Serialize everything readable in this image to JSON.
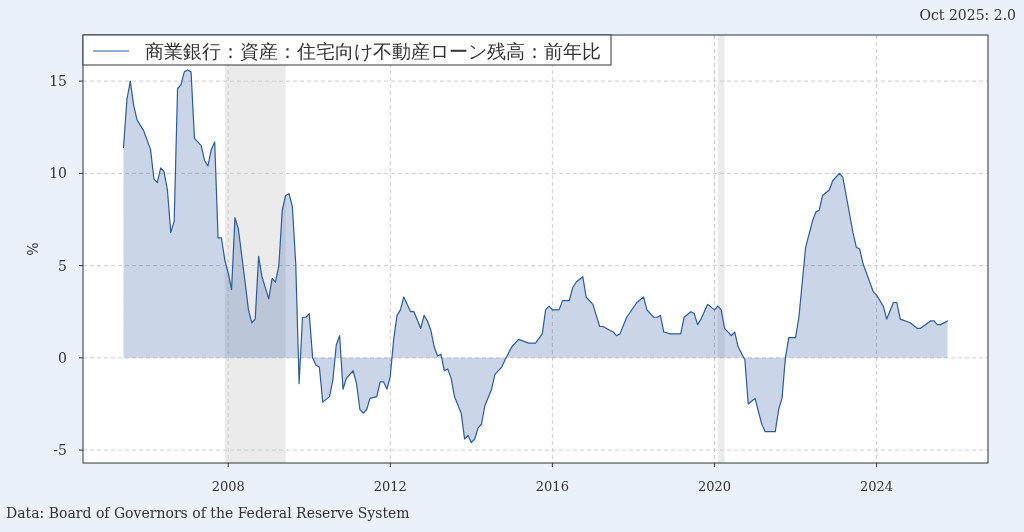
{
  "chart_data": {
    "type": "area",
    "ylabel": "%",
    "annotations": [
      "Oct 2025: 2.0",
      "Data: Board of Governors of the Federal Reserve System"
    ],
    "xlim": [
      "2004-06",
      "2026-10"
    ],
    "xticks": [
      "2008",
      "2012",
      "2016",
      "2020",
      "2024"
    ],
    "ylim": [
      -5.7,
      17.5
    ],
    "yticks": [
      -5,
      0,
      5,
      10,
      15
    ],
    "grid": true,
    "legend": "top left",
    "bands": [
      {
        "axis": "x",
        "from": "2007-12",
        "to": "2009-06",
        "color": "#ebebeb"
      },
      {
        "axis": "x",
        "from": "2020-02",
        "to": "2020-04",
        "color": "#ebebeb"
      }
    ],
    "x": [
      "2005-06",
      "2005-07",
      "2005-08",
      "2005-09",
      "2005-10",
      "2005-12",
      "2006-02",
      "2006-03",
      "2006-04",
      "2006-05",
      "2006-06",
      "2006-07",
      "2006-08",
      "2006-09",
      "2006-10",
      "2006-11",
      "2006-12",
      "2007-01",
      "2007-02",
      "2007-03",
      "2007-05",
      "2007-06",
      "2007-07",
      "2007-08",
      "2007-09",
      "2007-10",
      "2007-11",
      "2007-12",
      "2008-01",
      "2008-02",
      "2008-03",
      "2008-04",
      "2008-06",
      "2008-07",
      "2008-08",
      "2008-09",
      "2008-10",
      "2008-11",
      "2009-01",
      "2009-02",
      "2009-03",
      "2009-04",
      "2009-05",
      "2009-06",
      "2009-07",
      "2009-08",
      "2009-09",
      "2009-10",
      "2009-11",
      "2009-12",
      "2010-01",
      "2010-02",
      "2010-03",
      "2010-04",
      "2010-05",
      "2010-07",
      "2010-08",
      "2010-09",
      "2010-10",
      "2010-11",
      "2010-12",
      "2011-02",
      "2011-03",
      "2011-04",
      "2011-05",
      "2011-06",
      "2011-07",
      "2011-09",
      "2011-10",
      "2011-11",
      "2011-12",
      "2012-01",
      "2012-02",
      "2012-03",
      "2012-04",
      "2012-05",
      "2012-06",
      "2012-07",
      "2012-08",
      "2012-10",
      "2012-11",
      "2012-12",
      "2013-01",
      "2013-02",
      "2013-03",
      "2013-04",
      "2013-05",
      "2013-06",
      "2013-07",
      "2013-08",
      "2013-10",
      "2013-11",
      "2013-12",
      "2014-01",
      "2014-02",
      "2014-03",
      "2014-04",
      "2014-05",
      "2014-07",
      "2014-08",
      "2014-10",
      "2014-11",
      "2015-01",
      "2015-03",
      "2015-06",
      "2015-08",
      "2015-10",
      "2015-11",
      "2015-12",
      "2016-01",
      "2016-02",
      "2016-03",
      "2016-04",
      "2016-06",
      "2016-07",
      "2016-08",
      "2016-10",
      "2016-11",
      "2017-01",
      "2017-03",
      "2017-04",
      "2017-06",
      "2017-07",
      "2017-08",
      "2017-09",
      "2017-11",
      "2018-02",
      "2018-04",
      "2018-05",
      "2018-07",
      "2018-08",
      "2018-09",
      "2018-10",
      "2018-12",
      "2019-01",
      "2019-02",
      "2019-03",
      "2019-04",
      "2019-06",
      "2019-07",
      "2019-08",
      "2019-09",
      "2019-11",
      "2020-01",
      "2020-02",
      "2020-03",
      "2020-04",
      "2020-06",
      "2020-07",
      "2020-08",
      "2020-10",
      "2020-11",
      "2021-01",
      "2021-03",
      "2021-04",
      "2021-07",
      "2021-08",
      "2021-09",
      "2021-10",
      "2021-11",
      "2022-01",
      "2022-02",
      "2022-03",
      "2022-04",
      "2022-06",
      "2022-07",
      "2022-08",
      "2022-09",
      "2022-11",
      "2022-12",
      "2023-02",
      "2023-03",
      "2023-04",
      "2023-06",
      "2023-07",
      "2023-08",
      "2023-09",
      "2023-12",
      "2024-01",
      "2024-03",
      "2024-04",
      "2024-06",
      "2024-07",
      "2024-08",
      "2024-11",
      "2025-01",
      "2025-02",
      "2025-05",
      "2025-06",
      "2025-07",
      "2025-08",
      "2025-10"
    ],
    "series": [
      {
        "name": "商業銀行：資産：住宅向け不動産ローン残高：前年比",
        "color": "#2b5aa0",
        "values": [
          11.4,
          14.0,
          15.0,
          13.7,
          12.9,
          12.3,
          11.3,
          9.7,
          9.5,
          10.3,
          10.1,
          9.1,
          6.8,
          7.4,
          14.6,
          14.8,
          15.5,
          15.6,
          15.5,
          11.9,
          11.5,
          10.7,
          10.4,
          11.3,
          11.7,
          6.5,
          6.5,
          5.3,
          4.6,
          3.7,
          7.6,
          7.0,
          4.1,
          2.6,
          1.9,
          2.1,
          5.5,
          4.4,
          3.2,
          4.3,
          4.1,
          5.0,
          8.0,
          8.8,
          8.9,
          8.2,
          5.1,
          -1.4,
          2.2,
          2.2,
          2.4,
          0.0,
          -0.4,
          -0.5,
          -2.4,
          -2.1,
          -1.2,
          0.7,
          1.2,
          -1.7,
          -1.1,
          -0.7,
          -1.4,
          -2.8,
          -3.0,
          -2.8,
          -2.2,
          -2.1,
          -1.3,
          -1.3,
          -1.7,
          -1.0,
          1.0,
          2.3,
          2.6,
          3.3,
          2.9,
          2.5,
          2.5,
          1.6,
          2.3,
          2.0,
          1.5,
          0.6,
          0.1,
          0.2,
          -0.7,
          -0.6,
          -1.1,
          -2.1,
          -3.0,
          -4.4,
          -4.2,
          -4.6,
          -4.4,
          -3.8,
          -3.6,
          -2.6,
          -1.7,
          -0.9,
          -0.5,
          -0.1,
          0.6,
          1.0,
          0.8,
          0.8,
          1.3,
          2.6,
          2.8,
          2.6,
          2.6,
          2.6,
          3.1,
          3.1,
          3.8,
          4.1,
          4.4,
          3.3,
          2.9,
          1.7,
          1.7,
          1.5,
          1.4,
          1.2,
          1.3,
          2.2,
          3.0,
          3.3,
          2.6,
          2.2,
          2.2,
          2.3,
          1.4,
          1.3,
          1.3,
          1.3,
          1.3,
          2.2,
          2.5,
          2.4,
          1.8,
          2.1,
          2.9,
          2.6,
          2.8,
          2.6,
          1.6,
          1.2,
          1.4,
          0.6,
          -0.1,
          -2.5,
          -2.2,
          -3.6,
          -4.0,
          -4.0,
          -2.8,
          -2.2,
          0.0,
          1.1,
          1.1,
          2.2,
          4.1,
          6.0,
          7.4,
          7.9,
          8.0,
          8.8,
          9.1,
          9.6,
          10.0,
          9.8,
          8.8,
          6.8,
          6.0,
          5.9,
          5.1,
          3.6,
          3.4,
          2.8,
          2.1,
          3.0,
          3.0,
          2.1,
          1.9,
          1.6,
          1.6,
          2.0,
          2.0,
          1.8,
          1.8,
          2.0
        ]
      }
    ]
  }
}
